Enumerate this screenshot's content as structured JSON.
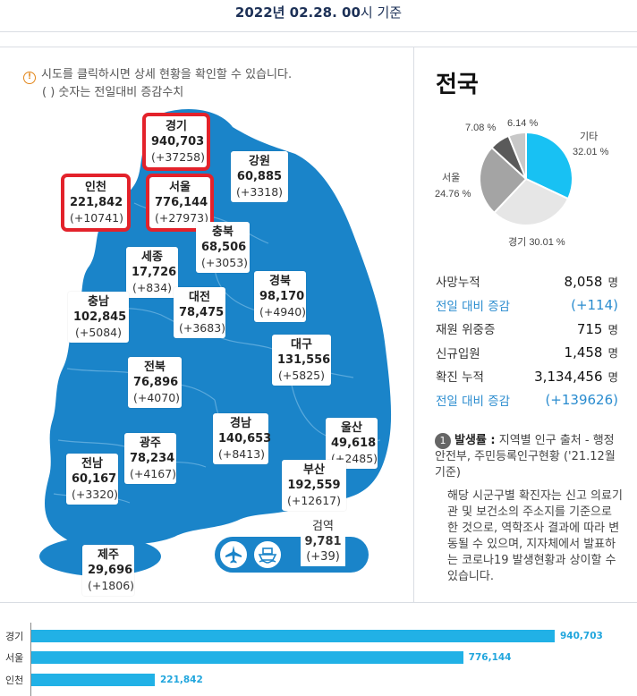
{
  "header": {
    "date_label": "2022년 02.28. 00",
    "date_suffix": "시 기준"
  },
  "notice": {
    "line1": "시도를 클릭하시면 상세 현황을 확인할 수 있습니다.",
    "line2": "( ) 숫자는 전일대비 증감수치"
  },
  "regions": [
    {
      "name": "경기",
      "total": "940,703",
      "delta": "(+37258)"
    },
    {
      "name": "강원",
      "total": "60,885",
      "delta": "(+3318)"
    },
    {
      "name": "인천",
      "total": "221,842",
      "delta": "(+10741)"
    },
    {
      "name": "서울",
      "total": "776,144",
      "delta": "(+27973)"
    },
    {
      "name": "충북",
      "total": "68,506",
      "delta": "(+3053)"
    },
    {
      "name": "세종",
      "total": "17,726",
      "delta": "(+834)"
    },
    {
      "name": "충남",
      "total": "102,845",
      "delta": "(+5084)"
    },
    {
      "name": "대전",
      "total": "78,475",
      "delta": "(+3683)"
    },
    {
      "name": "경북",
      "total": "98,170",
      "delta": "(+4940)"
    },
    {
      "name": "대구",
      "total": "131,556",
      "delta": "(+5825)"
    },
    {
      "name": "전북",
      "total": "76,896",
      "delta": "(+4070)"
    },
    {
      "name": "경남",
      "total": "140,653",
      "delta": "(+8413)"
    },
    {
      "name": "울산",
      "total": "49,618",
      "delta": "(+2485)"
    },
    {
      "name": "광주",
      "total": "78,234",
      "delta": "(+4167)"
    },
    {
      "name": "전남",
      "total": "60,167",
      "delta": "(+3320)"
    },
    {
      "name": "부산",
      "total": "192,559",
      "delta": "(+12617)"
    },
    {
      "name": "제주",
      "total": "29,696",
      "delta": "(+1806)"
    }
  ],
  "quarantine": {
    "name": "검역",
    "total": "9,781",
    "delta": "(+39)",
    "icons": [
      "airplane-icon",
      "ship-icon"
    ]
  },
  "nation": {
    "title": "전국",
    "pie": [
      {
        "label": "기타",
        "pct": "32.01 %",
        "value": 32.01,
        "color": "#18c1f3"
      },
      {
        "label": "경기",
        "pct": "30.01 %",
        "value": 30.01,
        "color": "#e6e6e6"
      },
      {
        "label": "서울",
        "pct": "24.76 %",
        "value": 24.76,
        "color": "#a4a4a4"
      },
      {
        "label": "인천",
        "pct": "7.08 %",
        "value": 7.08,
        "color": "#5a5a5a"
      },
      {
        "label": "부산",
        "pct": "6.14 %",
        "value": 6.14,
        "color": "#c8c8c8"
      }
    ],
    "stats": [
      {
        "label": "사망누적",
        "value": "8,058",
        "unit": "명",
        "sub": false
      },
      {
        "label": "전일 대비 증감",
        "value": "(+114)",
        "unit": "",
        "sub": true
      },
      {
        "label": "재원 위중증",
        "value": "715",
        "unit": "명",
        "sub": false
      },
      {
        "label": "신규입원",
        "value": "1,458",
        "unit": "명",
        "sub": false
      },
      {
        "label": "확진 누적",
        "value": "3,134,456",
        "unit": "명",
        "sub": false
      },
      {
        "label": "전일 대비 증감",
        "value": "(+139626)",
        "unit": "",
        "sub": true
      }
    ]
  },
  "note": {
    "badge": "1",
    "title": "발생률 :",
    "line1": "지역별 인구 출처 - 행정안전부, 주민등록인구현황 ('21.12월 기준)",
    "para": "해당 시군구별 확진자는 신고 의료기관 및 보건소의 주소지를 기준으로 한 것으로, 역학조사 결과에 따라 변동될 수 있으며, 지자체에서 발표하는 코로나19 발생현황과 상이할 수 있습니다."
  },
  "chart_data": {
    "type": "bar",
    "orientation": "horizontal",
    "categories": [
      "경기",
      "서울",
      "인천"
    ],
    "values": [
      940703,
      776144,
      221842
    ],
    "value_labels": [
      "940,703",
      "776,144",
      "221,842"
    ],
    "xlim": [
      0,
      940703
    ],
    "color": "#21b1e6"
  }
}
